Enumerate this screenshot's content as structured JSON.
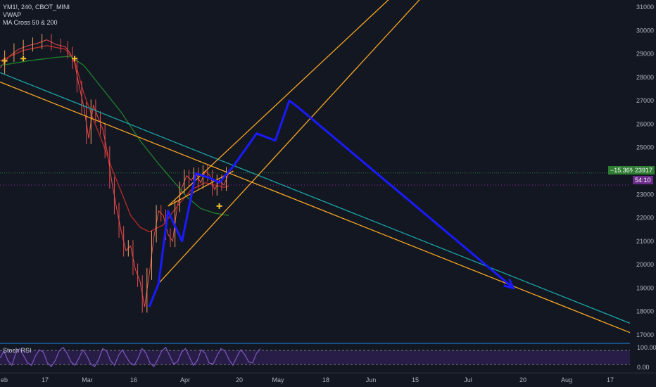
{
  "legend": {
    "symbol": "YM1!, 240, CBOT_MINI",
    "indicator1": "VWAP",
    "indicator2": "MA Cross 50 & 200"
  },
  "rsi": {
    "label": "Stoch RSI",
    "upper": "100.00",
    "lower": "0.00",
    "colors": {
      "k": "#7e57c2",
      "band": "#2a1e4a"
    }
  },
  "price_tags": {
    "change": "−15.36%",
    "last": "23917",
    "countdown": "54:10"
  },
  "colors": {
    "background": "#131722",
    "up": "#f0a35e",
    "down": "#e84b4b",
    "ma50": "#b02a2a",
    "ma200": "#1e7a2a",
    "vwap": "#f0c030",
    "trendline_orange": "#f5a623",
    "trendline_teal": "#1aa3a3",
    "arrows": "#1a1aff",
    "price_tag_green": "#2e7d32",
    "countdown_purple": "#6a2a8a",
    "axis_text": "#b2b5be"
  },
  "chart_data": {
    "type": "line",
    "title": "YM1!, 240, CBOT_MINI",
    "xlabel": "",
    "ylabel": "",
    "x_tick_labels": [
      "eb",
      "17",
      "Mar",
      "16",
      "Apr",
      "20",
      "May",
      "18",
      "Jun",
      "15",
      "Jul",
      "20",
      "Aug",
      "17"
    ],
    "y_ticks": [
      17000,
      18000,
      19000,
      20000,
      21000,
      22000,
      23000,
      24000,
      25000,
      26000,
      27000,
      28000,
      29000,
      30000,
      31000
    ],
    "ylim": [
      16700,
      31300
    ],
    "grid": false,
    "last_price": 23917,
    "series": [
      {
        "name": "YM1!",
        "points": [
          [
            0,
            28400
          ],
          [
            4,
            28900
          ],
          [
            8,
            29200
          ],
          [
            12,
            29350
          ],
          [
            16,
            29450
          ],
          [
            20,
            29600
          ],
          [
            24,
            29400
          ],
          [
            28,
            29300
          ],
          [
            30,
            29050
          ],
          [
            32,
            28600
          ],
          [
            34,
            27600
          ],
          [
            36,
            26700
          ],
          [
            38,
            25400
          ],
          [
            40,
            26800
          ],
          [
            42,
            26300
          ],
          [
            44,
            25800
          ],
          [
            46,
            24800
          ],
          [
            48,
            23500
          ],
          [
            50,
            22400
          ],
          [
            52,
            21400
          ],
          [
            54,
            20600
          ],
          [
            56,
            20800
          ],
          [
            58,
            19800
          ],
          [
            60,
            19300
          ],
          [
            62,
            18200
          ],
          [
            64,
            19600
          ],
          [
            66,
            21200
          ],
          [
            68,
            22300
          ],
          [
            70,
            22100
          ],
          [
            72,
            21300
          ],
          [
            74,
            21000
          ],
          [
            76,
            22500
          ],
          [
            78,
            23300
          ],
          [
            80,
            23800
          ],
          [
            82,
            23600
          ],
          [
            84,
            23900
          ],
          [
            86,
            23500
          ],
          [
            88,
            24000
          ],
          [
            90,
            23800
          ],
          [
            92,
            23200
          ],
          [
            94,
            23600
          ],
          [
            96,
            23400
          ],
          [
            98,
            23917
          ]
        ]
      },
      {
        "name": "MA Cross 50",
        "points": [
          [
            0,
            28700
          ],
          [
            10,
            29150
          ],
          [
            20,
            29350
          ],
          [
            28,
            29200
          ],
          [
            32,
            28700
          ],
          [
            36,
            27300
          ],
          [
            40,
            26200
          ],
          [
            44,
            25200
          ],
          [
            48,
            24100
          ],
          [
            52,
            23100
          ],
          [
            56,
            22100
          ],
          [
            60,
            21600
          ],
          [
            64,
            21400
          ],
          [
            70,
            21700
          ],
          [
            76,
            22500
          ],
          [
            82,
            23200
          ],
          [
            88,
            23500
          ],
          [
            96,
            23300
          ],
          [
            98,
            23350
          ]
        ]
      },
      {
        "name": "MA Cross 200",
        "points": [
          [
            0,
            28500
          ],
          [
            12,
            28700
          ],
          [
            24,
            28850
          ],
          [
            30,
            28900
          ],
          [
            36,
            28500
          ],
          [
            44,
            27500
          ],
          [
            52,
            26500
          ],
          [
            60,
            25300
          ],
          [
            68,
            24300
          ],
          [
            74,
            23600
          ],
          [
            80,
            22900
          ],
          [
            86,
            22400
          ],
          [
            92,
            22200
          ],
          [
            98,
            22100
          ]
        ]
      }
    ],
    "trendlines": [
      {
        "name": "",
        "color": "orange",
        "points": [
          [
            0,
            27800
          ],
          [
            270,
            17100
          ]
        ]
      },
      {
        "name": "",
        "color": "teal",
        "points": [
          [
            0,
            28200
          ],
          [
            270,
            17500
          ]
        ]
      },
      {
        "name": "",
        "color": "orange",
        "points": [
          [
            72,
            22500
          ],
          [
            190,
            33500
          ]
        ]
      },
      {
        "name": "",
        "color": "orange",
        "points": [
          [
            68,
            19200
          ],
          [
            200,
            33500
          ]
        ]
      },
      {
        "name": "",
        "color": "orange",
        "points": [
          [
            72,
            22500
          ],
          [
            100,
            24000
          ]
        ]
      }
    ],
    "projection": [
      [
        64,
        18200
      ],
      [
        68,
        19200
      ],
      [
        72,
        22300
      ],
      [
        78,
        21000
      ],
      [
        84,
        23900
      ],
      [
        90,
        23700
      ],
      [
        94,
        23500
      ],
      [
        100,
        24200
      ],
      [
        110,
        25600
      ],
      [
        118,
        25300
      ],
      [
        124,
        27000
      ],
      [
        128,
        26700
      ],
      [
        220,
        19000
      ]
    ],
    "markers": [
      [
        2,
        28700
      ],
      [
        10,
        28800
      ],
      [
        32,
        28800
      ],
      [
        94,
        22500
      ]
    ],
    "stoch_rsi": [
      50,
      80,
      40,
      20,
      70,
      90,
      60,
      30,
      20,
      60,
      85,
      75,
      30,
      15,
      40,
      80,
      95,
      70,
      35,
      20,
      50,
      85,
      60,
      25,
      15,
      45,
      90,
      80,
      40,
      20,
      60,
      85,
      55,
      30,
      20,
      50,
      90,
      70,
      30,
      15,
      45,
      80,
      95,
      60,
      25,
      35,
      75,
      90,
      55,
      20,
      40,
      85,
      70,
      30,
      25,
      60,
      90,
      80,
      45,
      20,
      55,
      85,
      65,
      35,
      30,
      70,
      90
    ]
  }
}
